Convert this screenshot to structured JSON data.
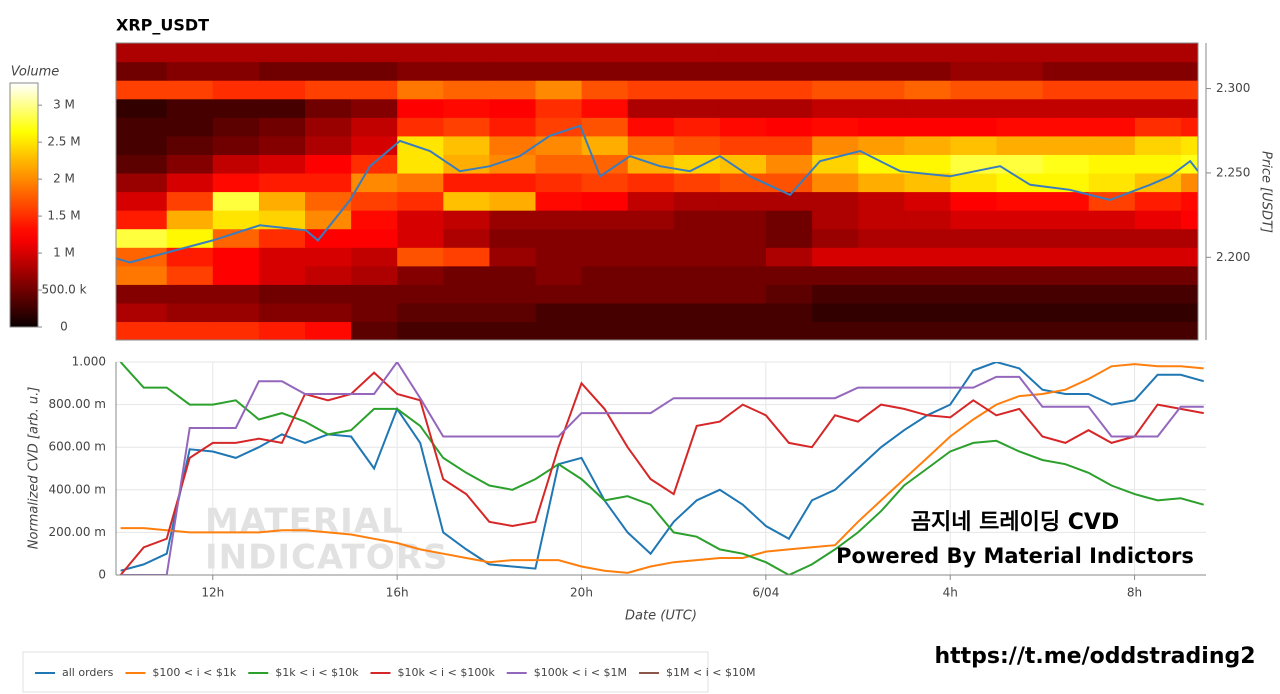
{
  "chart_data": [
    {
      "type": "heatmap",
      "title": "XRP_USDT",
      "colorbar_label": "Volume",
      "ylabel": "Price [USDT]",
      "xlim": [
        9.9,
        33.37
      ],
      "ylim": [
        2.151,
        2.327
      ],
      "yticks": [
        {
          "value": 2.2,
          "label": "2.200"
        },
        {
          "value": 2.25,
          "label": "2.250"
        },
        {
          "value": 2.3,
          "label": "2.300"
        }
      ],
      "zlim": [
        0,
        3.3
      ],
      "zticks": [
        0,
        {
          "value": 0.5,
          "label": "500.0 k"
        },
        {
          "value": 1,
          "label": "1 M"
        },
        {
          "value": 1.5,
          "label": "1.5 M"
        },
        {
          "value": 2,
          "label": "2 M"
        },
        {
          "value": 2.5,
          "label": "2.5 M"
        },
        {
          "value": 3,
          "label": "3 M"
        }
      ],
      "x": [
        9.9,
        11,
        12,
        13,
        14,
        15,
        16,
        17,
        18,
        19,
        20,
        21,
        22,
        23,
        24,
        25,
        26,
        27,
        28,
        29,
        30,
        31,
        32,
        33,
        33.37
      ],
      "y": [
        2.151,
        2.162,
        2.173,
        2.184,
        2.195,
        2.206,
        2.217,
        2.228,
        2.239,
        2.25,
        2.261,
        2.272,
        2.283,
        2.294,
        2.305,
        2.316,
        2.327
      ],
      "z": [
        [
          1.5,
          1.5,
          1.5,
          1.4,
          1.3,
          0.4,
          0.3,
          0.3,
          0.3,
          0.3,
          0.3,
          0.3,
          0.3,
          0.3,
          0.3,
          0.3,
          0.3,
          0.3,
          0.3,
          0.3,
          0.3,
          0.3,
          0.3,
          0.3
        ],
        [
          0.8,
          0.7,
          0.7,
          0.6,
          0.6,
          0.5,
          0.4,
          0.4,
          0.4,
          0.3,
          0.3,
          0.3,
          0.3,
          0.3,
          0.3,
          0.2,
          0.2,
          0.2,
          0.2,
          0.2,
          0.2,
          0.2,
          0.2,
          0.2
        ],
        [
          0.6,
          0.6,
          0.6,
          0.5,
          0.5,
          0.5,
          0.5,
          0.5,
          0.5,
          0.5,
          0.5,
          0.5,
          0.5,
          0.5,
          0.4,
          0.3,
          0.3,
          0.3,
          0.3,
          0.3,
          0.3,
          0.3,
          0.3,
          0.3
        ],
        [
          1.9,
          1.6,
          1.2,
          1.0,
          0.9,
          0.8,
          0.6,
          0.5,
          0.5,
          0.6,
          0.5,
          0.5,
          0.5,
          0.5,
          0.5,
          0.5,
          0.5,
          0.5,
          0.5,
          0.5,
          0.5,
          0.5,
          0.5,
          0.5
        ],
        [
          1.8,
          1.4,
          1.2,
          1.0,
          1.0,
          0.9,
          1.7,
          1.6,
          0.7,
          0.6,
          0.6,
          0.6,
          0.6,
          0.6,
          0.8,
          1.0,
          1.0,
          1.0,
          1.0,
          1.0,
          1.0,
          1.0,
          1.0,
          1.0
        ],
        [
          2.8,
          2.6,
          1.8,
          1.5,
          1.2,
          1.2,
          1.0,
          0.8,
          0.6,
          0.6,
          0.6,
          0.6,
          0.6,
          0.6,
          0.5,
          0.7,
          0.8,
          0.8,
          0.8,
          0.8,
          0.8,
          0.8,
          0.8,
          0.8
        ],
        [
          1.4,
          2.2,
          2.5,
          2.4,
          2.0,
          1.3,
          1.0,
          0.9,
          0.7,
          0.7,
          0.7,
          0.7,
          0.6,
          0.6,
          0.5,
          0.8,
          0.9,
          0.9,
          1.0,
          1.0,
          1.0,
          1.0,
          1.1,
          1.2
        ],
        [
          1.0,
          1.6,
          2.8,
          2.2,
          1.8,
          1.6,
          1.5,
          2.3,
          2.2,
          1.3,
          1.2,
          0.9,
          0.8,
          0.8,
          0.8,
          0.8,
          0.9,
          1.0,
          1.2,
          1.3,
          1.3,
          1.6,
          1.4,
          1.3
        ],
        [
          0.7,
          1.0,
          1.3,
          1.4,
          1.4,
          2.0,
          1.9,
          1.4,
          1.4,
          1.5,
          1.6,
          1.5,
          1.6,
          1.7,
          1.7,
          2.0,
          2.2,
          2.3,
          2.5,
          2.6,
          2.6,
          2.5,
          2.3,
          2.0
        ],
        [
          0.4,
          0.6,
          0.9,
          1.0,
          1.2,
          1.5,
          2.5,
          2.2,
          2.0,
          1.8,
          1.8,
          2.2,
          2.4,
          2.3,
          2.0,
          2.4,
          2.6,
          2.6,
          2.8,
          2.8,
          2.7,
          2.6,
          2.6,
          2.7
        ],
        [
          0.3,
          0.4,
          0.5,
          0.6,
          0.8,
          1.0,
          2.5,
          2.3,
          1.9,
          2.0,
          2.2,
          1.8,
          1.7,
          1.6,
          1.6,
          2.0,
          2.1,
          2.2,
          2.3,
          2.2,
          2.2,
          2.2,
          2.4,
          2.5
        ],
        [
          0.3,
          0.3,
          0.4,
          0.5,
          0.7,
          0.9,
          1.5,
          1.6,
          1.4,
          1.6,
          1.7,
          1.3,
          1.4,
          1.3,
          1.2,
          1.3,
          1.2,
          1.2,
          1.2,
          1.3,
          1.3,
          1.3,
          1.5,
          1.4
        ],
        [
          0.2,
          0.3,
          0.3,
          0.3,
          0.5,
          0.6,
          1.2,
          1.3,
          1.2,
          1.5,
          1.3,
          0.8,
          0.8,
          0.8,
          0.8,
          0.9,
          0.9,
          0.9,
          0.9,
          0.9,
          0.9,
          0.9,
          0.9,
          0.9
        ],
        [
          1.6,
          1.6,
          1.5,
          1.5,
          1.6,
          1.6,
          1.9,
          1.8,
          1.8,
          2.0,
          1.7,
          1.6,
          1.6,
          1.6,
          1.6,
          1.7,
          1.7,
          1.8,
          1.7,
          1.7,
          1.6,
          1.6,
          1.6,
          1.6
        ],
        [
          0.5,
          0.6,
          0.6,
          0.5,
          0.5,
          0.5,
          0.6,
          0.6,
          0.6,
          0.6,
          0.6,
          0.6,
          0.6,
          0.6,
          0.6,
          0.6,
          0.6,
          0.6,
          0.7,
          0.7,
          0.6,
          0.6,
          0.6,
          0.6
        ],
        [
          0.8,
          0.8,
          0.8,
          0.8,
          0.8,
          0.8,
          0.8,
          0.8,
          0.8,
          0.8,
          0.8,
          0.8,
          0.8,
          0.8,
          0.8,
          0.8,
          0.8,
          0.8,
          0.8,
          0.8,
          0.8,
          0.8,
          0.8,
          0.8
        ]
      ],
      "price_line": {
        "color": "#3a7dbf",
        "x": [
          9.9,
          10.2,
          12,
          13.02,
          14.02,
          14.28,
          14.98,
          15.41,
          16.06,
          16.71,
          17.36,
          18.01,
          18.66,
          19.31,
          19.97,
          20.4,
          21.05,
          21.7,
          22.35,
          23.0,
          23.65,
          24.52,
          25.17,
          26.04,
          26.91,
          27.99,
          29.08,
          29.73,
          30.59,
          31.46,
          32.33,
          32.76,
          33.2,
          33.37
        ],
        "values": [
          2.1994,
          2.197,
          2.21,
          2.219,
          2.216,
          2.21,
          2.234,
          2.254,
          2.269,
          2.263,
          2.251,
          2.254,
          2.26,
          2.272,
          2.278,
          2.248,
          2.26,
          2.254,
          2.251,
          2.26,
          2.248,
          2.237,
          2.257,
          2.263,
          2.251,
          2.248,
          2.254,
          2.243,
          2.24,
          2.234,
          2.243,
          2.248,
          2.257,
          2.251
        ]
      }
    },
    {
      "type": "line",
      "ylabel": "Normalized CVD [arb. u.]",
      "xlabel": "Date (UTC)",
      "xlim": [
        9.9,
        33.55
      ],
      "ylim": [
        0,
        1
      ],
      "xticks": [
        {
          "value": 12,
          "label": "12h"
        },
        {
          "value": 16,
          "label": "16h"
        },
        {
          "value": 20,
          "label": "20h"
        },
        {
          "value": 24,
          "label": "6/04"
        },
        {
          "value": 28,
          "label": "4h"
        },
        {
          "value": 32,
          "label": "8h"
        }
      ],
      "yticks": [
        0,
        {
          "value": 0.2,
          "label": "200.00 m"
        },
        {
          "value": 0.4,
          "label": "400.00 m"
        },
        {
          "value": 0.6,
          "label": "600.00 m"
        },
        {
          "value": 0.8,
          "label": "800.00 m"
        },
        {
          "value": 1,
          "label": "1.000"
        }
      ],
      "grid": true,
      "legend": "bottom-left",
      "x": [
        10,
        10.5,
        11,
        11.5,
        12,
        12.5,
        13,
        13.5,
        14,
        14.5,
        15,
        15.5,
        16,
        16.5,
        17,
        17.5,
        18,
        18.5,
        19,
        19.5,
        20,
        20.5,
        21,
        21.5,
        22,
        22.5,
        23,
        23.5,
        24,
        24.5,
        25,
        25.5,
        26,
        26.5,
        27,
        27.5,
        28,
        28.5,
        29,
        29.5,
        30,
        30.5,
        31,
        31.5,
        32,
        32.5,
        33,
        33.5
      ],
      "series": [
        {
          "name": "all orders",
          "color": "#1f77b4",
          "values": [
            0.02,
            0.05,
            0.1,
            0.59,
            0.58,
            0.55,
            0.6,
            0.66,
            0.62,
            0.66,
            0.65,
            0.5,
            0.78,
            0.62,
            0.2,
            0.12,
            0.05,
            0.04,
            0.03,
            0.52,
            0.55,
            0.35,
            0.2,
            0.1,
            0.25,
            0.35,
            0.4,
            0.33,
            0.23,
            0.17,
            0.35,
            0.4,
            0.5,
            0.6,
            0.68,
            0.75,
            0.8,
            0.96,
            1.0,
            0.97,
            0.87,
            0.85,
            0.85,
            0.8,
            0.82,
            0.94,
            0.94,
            0.91
          ]
        },
        {
          "name": "$100 < i < $1k",
          "color": "#ff7f0e",
          "values": [
            0.22,
            0.22,
            0.21,
            0.2,
            0.2,
            0.2,
            0.2,
            0.21,
            0.21,
            0.2,
            0.19,
            0.17,
            0.15,
            0.12,
            0.1,
            0.08,
            0.06,
            0.07,
            0.07,
            0.07,
            0.04,
            0.02,
            0.01,
            0.04,
            0.06,
            0.07,
            0.08,
            0.08,
            0.11,
            0.12,
            0.13,
            0.14,
            0.25,
            0.35,
            0.45,
            0.55,
            0.65,
            0.73,
            0.8,
            0.84,
            0.85,
            0.87,
            0.92,
            0.98,
            0.99,
            0.98,
            0.98,
            0.97
          ]
        },
        {
          "name": "$1k < i < $10k",
          "color": "#2ca02c",
          "values": [
            1.0,
            0.88,
            0.88,
            0.8,
            0.8,
            0.82,
            0.73,
            0.76,
            0.72,
            0.66,
            0.68,
            0.78,
            0.78,
            0.7,
            0.55,
            0.48,
            0.42,
            0.4,
            0.45,
            0.52,
            0.45,
            0.35,
            0.37,
            0.33,
            0.2,
            0.18,
            0.12,
            0.1,
            0.06,
            0.0,
            0.05,
            0.12,
            0.2,
            0.3,
            0.42,
            0.5,
            0.58,
            0.62,
            0.63,
            0.58,
            0.54,
            0.52,
            0.48,
            0.42,
            0.38,
            0.35,
            0.36,
            0.33
          ]
        },
        {
          "name": "$10k < i < $100k",
          "color": "#d62728",
          "values": [
            0.0,
            0.13,
            0.17,
            0.55,
            0.62,
            0.62,
            0.64,
            0.62,
            0.85,
            0.82,
            0.85,
            0.95,
            0.85,
            0.82,
            0.45,
            0.38,
            0.25,
            0.23,
            0.25,
            0.6,
            0.9,
            0.78,
            0.6,
            0.45,
            0.38,
            0.7,
            0.72,
            0.8,
            0.75,
            0.62,
            0.6,
            0.75,
            0.72,
            0.8,
            0.78,
            0.75,
            0.74,
            0.82,
            0.75,
            0.78,
            0.65,
            0.62,
            0.68,
            0.62,
            0.65,
            0.8,
            0.78,
            0.76
          ]
        },
        {
          "name": "$100k < i < $1M",
          "color": "#9467bd",
          "values": [
            0,
            0,
            0,
            0.69,
            0.69,
            0.69,
            0.91,
            0.91,
            0.85,
            0.85,
            0.85,
            0.85,
            1.0,
            0.83,
            0.65,
            0.65,
            0.65,
            0.65,
            0.65,
            0.65,
            0.76,
            0.76,
            0.76,
            0.76,
            0.83,
            0.83,
            0.83,
            0.83,
            0.83,
            0.83,
            0.83,
            0.83,
            0.88,
            0.88,
            0.88,
            0.88,
            0.88,
            0.88,
            0.93,
            0.93,
            0.79,
            0.79,
            0.79,
            0.65,
            0.65,
            0.65,
            0.79,
            0.79
          ]
        },
        {
          "name": "$1M < i < $10M",
          "color": "#8c564b",
          "values": [
            null,
            null,
            null,
            null,
            null,
            null,
            null,
            null,
            null,
            null,
            null,
            null,
            null,
            null,
            null,
            null,
            null,
            null,
            null,
            null,
            null,
            null,
            null,
            null,
            null,
            null,
            null,
            null,
            null,
            null,
            null,
            null,
            null,
            null,
            null,
            null,
            null,
            null,
            null,
            null,
            null,
            null,
            null,
            null,
            null,
            null,
            null,
            null
          ]
        }
      ],
      "watermark": [
        "MATERIAL",
        "INDICATORS"
      ],
      "annotations": [
        "곰지네 트레이딩 CVD",
        "Powered By Material Indictors"
      ]
    }
  ],
  "footer": "https://t.me/oddstrading2"
}
